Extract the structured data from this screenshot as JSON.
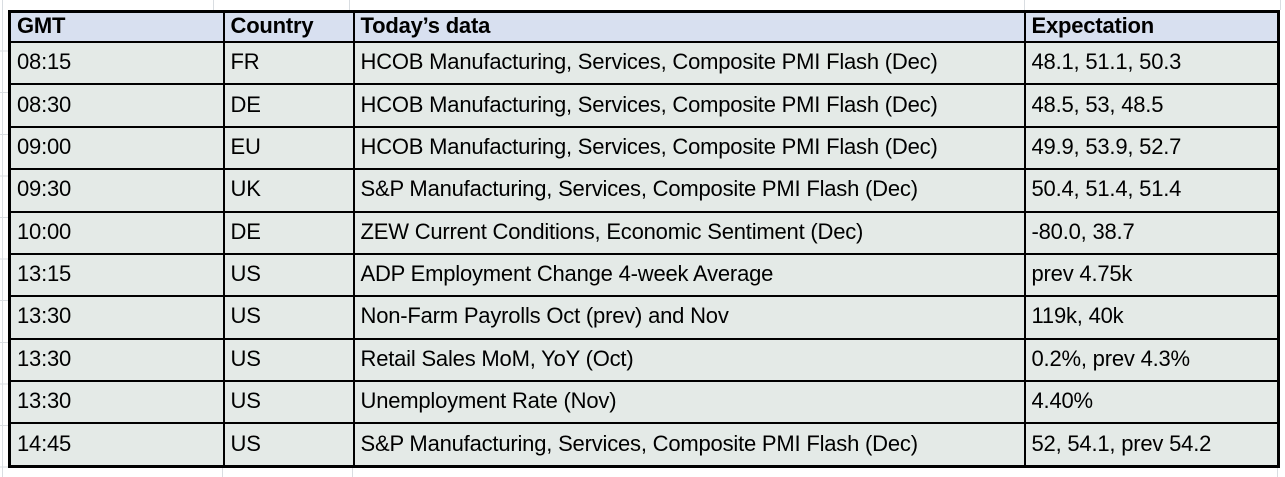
{
  "table": {
    "columns": [
      {
        "key": "gmt",
        "label": "GMT"
      },
      {
        "key": "country",
        "label": "Country"
      },
      {
        "key": "todays_data",
        "label": "Today’s data"
      },
      {
        "key": "expectation",
        "label": "Expectation"
      }
    ],
    "rows": [
      {
        "gmt": "08:15",
        "country": "FR",
        "todays_data": "HCOB Manufacturing, Services, Composite PMI Flash (Dec)",
        "expectation": "48.1, 51.1, 50.3"
      },
      {
        "gmt": "08:30",
        "country": "DE",
        "todays_data": "HCOB Manufacturing, Services, Composite PMI Flash (Dec)",
        "expectation": "48.5, 53, 48.5"
      },
      {
        "gmt": "09:00",
        "country": "EU",
        "todays_data": "HCOB Manufacturing, Services, Composite PMI Flash (Dec)",
        "expectation": "49.9, 53.9, 52.7"
      },
      {
        "gmt": "09:30",
        "country": "UK",
        "todays_data": "S&P Manufacturing, Services, Composite PMI Flash (Dec)",
        "expectation": "50.4, 51.4, 51.4"
      },
      {
        "gmt": "10:00",
        "country": "DE",
        "todays_data": "ZEW Current Conditions, Economic Sentiment (Dec)",
        "expectation": "-80.0, 38.7"
      },
      {
        "gmt": "13:15",
        "country": "US",
        "todays_data": "ADP Employment Change 4-week Average",
        "expectation": "prev 4.75k"
      },
      {
        "gmt": "13:30",
        "country": "US",
        "todays_data": "Non-Farm Payrolls Oct (prev) and Nov",
        "expectation": "119k, 40k"
      },
      {
        "gmt": "13:30",
        "country": "US",
        "todays_data": "Retail Sales MoM, YoY (Oct)",
        "expectation": "0.2%, prev 4.3%"
      },
      {
        "gmt": "13:30",
        "country": "US",
        "todays_data": "Unemployment Rate (Nov)",
        "expectation": "4.40%"
      },
      {
        "gmt": "14:45",
        "country": "US",
        "todays_data": "S&P Manufacturing, Services, Composite PMI Flash (Dec)",
        "expectation": "52, 54.1, prev 54.2"
      }
    ]
  },
  "colors": {
    "page_bg": "#ffffff",
    "header_bg": "#d8e0f0",
    "row_bg": "#e4eae7",
    "border": "#000000",
    "text": "#000000",
    "gridline": "#d9dde1"
  }
}
